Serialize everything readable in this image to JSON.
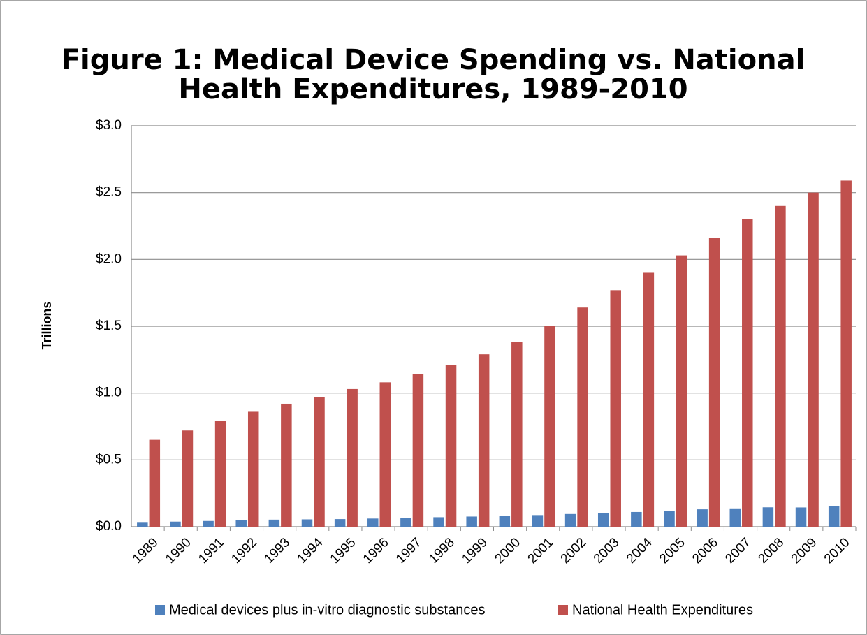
{
  "chart_data": {
    "type": "bar",
    "title": [
      "Figure 1: Medical Device Spending vs. National",
      "Health Expenditures, 1989-2010"
    ],
    "y_label": "Trillions",
    "categories": [
      "1989",
      "1990",
      "1991",
      "1992",
      "1993",
      "1994",
      "1995",
      "1996",
      "1997",
      "1998",
      "1999",
      "2000",
      "2001",
      "2002",
      "2003",
      "2004",
      "2005",
      "2006",
      "2007",
      "2008",
      "2009",
      "2010"
    ],
    "series": [
      {
        "name": "Medical devices plus in-vitro diagnostic substances",
        "color": "#4f81bd",
        "values": [
          0.035,
          0.038,
          0.043,
          0.05,
          0.053,
          0.055,
          0.057,
          0.061,
          0.065,
          0.071,
          0.076,
          0.081,
          0.087,
          0.095,
          0.103,
          0.11,
          0.12,
          0.13,
          0.137,
          0.145,
          0.144,
          0.155
        ]
      },
      {
        "name": "National Health Expenditures",
        "color": "#c0504d",
        "values": [
          0.65,
          0.72,
          0.79,
          0.86,
          0.92,
          0.97,
          1.03,
          1.08,
          1.14,
          1.21,
          1.29,
          1.38,
          1.5,
          1.64,
          1.77,
          1.9,
          2.03,
          2.16,
          2.3,
          2.4,
          2.5,
          2.59
        ]
      }
    ],
    "ylim": [
      0,
      3
    ],
    "yticks": [
      {
        "value": 0,
        "label": "$0.0"
      },
      {
        "value": 0.5,
        "label": "$0.5"
      },
      {
        "value": 1,
        "label": "$1.0"
      },
      {
        "value": 1.5,
        "label": "$1.5"
      },
      {
        "value": 2,
        "label": "$2.0"
      },
      {
        "value": 2.5,
        "label": "$2.5"
      },
      {
        "value": 3,
        "label": "$3.0"
      }
    ],
    "grid": true,
    "legend": "bottom"
  }
}
